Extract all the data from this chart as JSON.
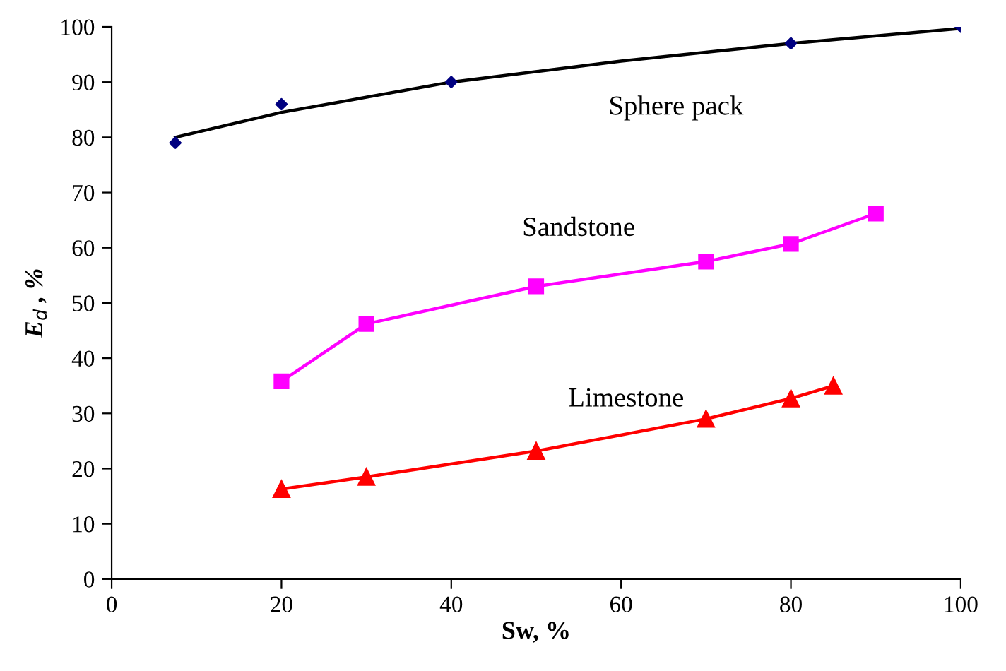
{
  "chart_data": {
    "type": "line",
    "xlabel": "Sw, %",
    "ylabel": "E$_{d}$ , %",
    "xlim": [
      0,
      100
    ],
    "ylim": [
      0,
      100
    ],
    "xticks": [
      0,
      20,
      40,
      60,
      80,
      100
    ],
    "yticks": [
      0,
      10,
      20,
      30,
      40,
      50,
      60,
      70,
      80,
      90,
      100
    ],
    "grid": false,
    "legend": false,
    "series": [
      {
        "type": "scatter",
        "name": "Sphere pack",
        "marker": "diamond",
        "color": "#000080",
        "x": [
          7.5,
          20,
          40,
          80,
          100
        ],
        "values": [
          79,
          86,
          90,
          97,
          100
        ]
      },
      {
        "marker": "none",
        "color": "#000000",
        "x": [
          7.5,
          20,
          40,
          60,
          80,
          100
        ],
        "values": [
          80,
          84.5,
          90,
          93.8,
          97,
          99.7
        ]
      },
      {
        "name": "Sandstone",
        "marker": "square",
        "color": "#ff00ff",
        "x": [
          20,
          30,
          50,
          70,
          80,
          90
        ],
        "values": [
          35.8,
          46.2,
          53,
          57.5,
          60.7,
          66.2
        ]
      },
      {
        "name": "Limestone",
        "marker": "triangle",
        "color": "#ff0000",
        "x": [
          20,
          30,
          50,
          70,
          80,
          85
        ],
        "values": [
          16.3,
          18.5,
          23.2,
          29,
          32.7,
          35
        ]
      }
    ]
  }
}
